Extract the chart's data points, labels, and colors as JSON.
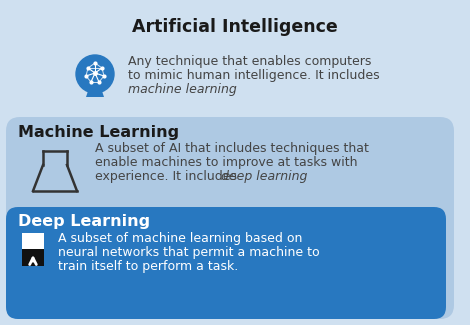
{
  "bg_outer": "#cfe0f0",
  "bg_mid": "#aec9e3",
  "bg_deep": "#2878c0",
  "title_ai": "Artificial Intelligence",
  "title_ml": "Machine Learning",
  "title_dl": "Deep Learning",
  "ai_lines": [
    "Any technique that enables computers",
    "to mimic human intelligence. It includes",
    "machine learning"
  ],
  "ai_italic": [
    false,
    false,
    true
  ],
  "ml_lines_1": [
    "A subset of AI that includes techniques that",
    "enable machines to improve at tasks with"
  ],
  "ml_line_2_plain": "experience. It includes ",
  "ml_line_2_italic": "deep learning",
  "dl_lines": [
    "A subset of machine learning based on",
    "neural networks that permit a machine to",
    "train itself to perform a task."
  ],
  "title_color_ai": "#1a1a1a",
  "title_color_ml": "#1a1a1a",
  "title_color_dl": "#ffffff",
  "text_color_ai": "#444444",
  "text_color_ml": "#444444",
  "text_color_dl": "#ffffff",
  "icon_ai_color": "#2878c0",
  "icon_ml_color": "#333333",
  "icon_dl_white": "#ffffff",
  "icon_dl_black": "#111111"
}
